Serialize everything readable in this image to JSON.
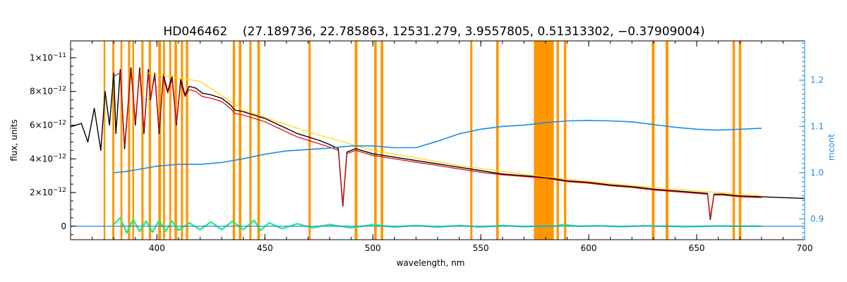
{
  "chart_data": {
    "type": "line",
    "title": "HD046462    (27.189736, 22.785863, 12531.279, 3.9557805, 0.51313302, −0.37909004)",
    "xlabel": "wavelength, nm",
    "ylabel": "flux, units",
    "y2label": "mcont",
    "xlim": [
      360,
      700
    ],
    "ylim": [
      -8e-13,
      1.1e-11
    ],
    "y2lim": [
      0.855,
      1.285
    ],
    "x_ticks": [
      400,
      450,
      500,
      550,
      600,
      650,
      700
    ],
    "y_ticks": [
      {
        "value": 0,
        "label": "0",
        "base": "",
        "exp": ""
      },
      {
        "value": 2e-12,
        "label": "",
        "base": "2×10",
        "exp": "−12"
      },
      {
        "value": 4e-12,
        "label": "",
        "base": "4×10",
        "exp": "−12"
      },
      {
        "value": 6e-12,
        "label": "",
        "base": "6×10",
        "exp": "−12"
      },
      {
        "value": 8e-12,
        "label": "",
        "base": "8×10",
        "exp": "−12"
      },
      {
        "value": 1e-11,
        "label": "",
        "base": "1×10",
        "exp": "−11"
      }
    ],
    "y2_ticks": [
      {
        "value": 0.9,
        "label": "0.9"
      },
      {
        "value": 1.0,
        "label": "1.0"
      },
      {
        "value": 1.1,
        "label": "1.1"
      },
      {
        "value": 1.2,
        "label": "1.2"
      }
    ],
    "masked_regions": [
      [
        375.3,
        376.1
      ],
      [
        379.3,
        380.3
      ],
      [
        383.1,
        384.0
      ],
      [
        386.6,
        387.6
      ],
      [
        388.6,
        389.4
      ],
      [
        392.8,
        393.8
      ],
      [
        396.2,
        397.3
      ],
      [
        400.6,
        401.9
      ],
      [
        402.8,
        403.7
      ],
      [
        405.7,
        406.6
      ],
      [
        408.1,
        409.3
      ],
      [
        411.1,
        412.1
      ],
      [
        413.4,
        414.5
      ],
      [
        435.1,
        436.2
      ],
      [
        437.9,
        439.1
      ],
      [
        442.8,
        443.8
      ],
      [
        446.5,
        447.7
      ],
      [
        470.2,
        471.2
      ],
      [
        491.6,
        492.9
      ],
      [
        500.6,
        501.8
      ],
      [
        503.6,
        504.8
      ],
      [
        545.1,
        546.1
      ],
      [
        557.1,
        558.3
      ],
      [
        574.6,
        583.8
      ],
      [
        585.1,
        586.2
      ],
      [
        588.5,
        589.6
      ],
      [
        629.2,
        630.5
      ],
      [
        635.6,
        636.9
      ],
      [
        666.6,
        667.7
      ],
      [
        669.5,
        670.7
      ]
    ],
    "series": [
      {
        "key": "observed",
        "color": "#000000",
        "axis": "left",
        "x": [
          360,
          365,
          368,
          371,
          374,
          376,
          378,
          380,
          381,
          383,
          385,
          388,
          390,
          392,
          394,
          396,
          397,
          399,
          401,
          403,
          405,
          407,
          409,
          411,
          413,
          415,
          418,
          421,
          425,
          430,
          434,
          436,
          440,
          445,
          450,
          455,
          460,
          465,
          470,
          475,
          480,
          484,
          486.1,
          488,
          492,
          500,
          510,
          520,
          530,
          540,
          550,
          560,
          570,
          580,
          590,
          600,
          610,
          620,
          630,
          640,
          650,
          655,
          656.3,
          658,
          662,
          670,
          680,
          690,
          700
        ],
        "y": [
          5.9e-12,
          6.1e-12,
          5e-12,
          7e-12,
          4.5e-12,
          8e-12,
          6e-12,
          9.1e-12,
          5.5e-12,
          9.3e-12,
          4.6e-12,
          9.4e-12,
          6e-12,
          9.4e-12,
          5.5e-12,
          9.3e-12,
          7.5e-12,
          9.1e-12,
          5.5e-12,
          9e-12,
          8e-12,
          8.9e-12,
          6e-12,
          8.7e-12,
          7.8e-12,
          8.3e-12,
          8.2e-12,
          7.9e-12,
          7.8e-12,
          7.6e-12,
          7.2e-12,
          6.9e-12,
          6.8e-12,
          6.6e-12,
          6.4e-12,
          6.1e-12,
          5.8e-12,
          5.5e-12,
          5.3e-12,
          5.1e-12,
          4.85e-12,
          4.6e-12,
          1.2e-12,
          4.4e-12,
          4.6e-12,
          4.3e-12,
          4.1e-12,
          3.9e-12,
          3.7e-12,
          3.5e-12,
          3.3e-12,
          3.1e-12,
          3e-12,
          2.9e-12,
          2.7e-12,
          2.6e-12,
          2.45e-12,
          2.35e-12,
          2.2e-12,
          2.1e-12,
          2e-12,
          1.95e-12,
          4e-13,
          1.9e-12,
          1.9e-12,
          1.8e-12,
          1.75e-12,
          1.7e-12,
          1.65e-12
        ]
      },
      {
        "key": "model",
        "color": "#e00000",
        "axis": "left",
        "x": [
          380,
          383,
          385,
          388,
          390,
          392,
          394,
          396,
          397,
          399,
          401,
          403,
          405,
          407,
          409,
          411,
          413,
          415,
          418,
          421,
          425,
          430,
          434,
          436,
          440,
          445,
          450,
          455,
          460,
          465,
          470,
          475,
          480,
          484,
          486.1,
          488,
          492,
          500,
          510,
          520,
          530,
          540,
          550,
          560,
          570,
          580,
          590,
          600,
          610,
          620,
          630,
          640,
          650,
          655,
          656.3,
          658,
          662,
          670,
          680
        ],
        "y": [
          8.9e-12,
          9.1e-12,
          4.8e-12,
          9.2e-12,
          6.2e-12,
          9.2e-12,
          5.7e-12,
          9.1e-12,
          7.6e-12,
          8.9e-12,
          5.7e-12,
          8.8e-12,
          7.9e-12,
          8.7e-12,
          6.1e-12,
          8.5e-12,
          7.7e-12,
          8.1e-12,
          8e-12,
          7.7e-12,
          7.6e-12,
          7.4e-12,
          7e-12,
          6.7e-12,
          6.6e-12,
          6.4e-12,
          6.2e-12,
          5.9e-12,
          5.6e-12,
          5.3e-12,
          5.1e-12,
          4.9e-12,
          4.7e-12,
          4.5e-12,
          1.3e-12,
          4.3e-12,
          4.5e-12,
          4.2e-12,
          4e-12,
          3.8e-12,
          3.6e-12,
          3.4e-12,
          3.2e-12,
          3.05e-12,
          2.95e-12,
          2.85e-12,
          2.65e-12,
          2.55e-12,
          2.4e-12,
          2.3e-12,
          2.15e-12,
          2.05e-12,
          1.95e-12,
          1.9e-12,
          5e-13,
          1.85e-12,
          1.85e-12,
          1.75e-12,
          1.7e-12
        ]
      },
      {
        "key": "continuum_model",
        "color": "#ffd800",
        "axis": "left",
        "x": [
          395,
          420,
          440,
          470,
          500,
          540,
          575,
          590,
          620,
          660,
          680
        ],
        "y": [
          9.1e-12,
          8.6e-12,
          6.9e-12,
          5.6e-12,
          4.5e-12,
          3.6e-12,
          3e-12,
          2.8e-12,
          2.4e-12,
          2e-12,
          1.8e-12
        ]
      },
      {
        "key": "residuals",
        "color": "#22ee77",
        "axis": "left",
        "x": [
          380,
          383,
          386,
          389,
          392,
          395,
          398,
          401,
          404,
          407,
          410,
          415,
          420,
          425,
          430,
          435,
          440,
          445,
          448,
          452,
          458,
          465,
          472,
          480,
          490,
          500,
          510,
          520,
          530,
          540,
          550,
          560,
          570,
          575,
          584,
          588,
          595,
          605,
          615,
          625,
          635,
          645,
          655,
          660,
          670,
          680
        ],
        "y": [
          1e-13,
          5e-13,
          -4e-13,
          4e-13,
          -3e-13,
          3e-13,
          -3.5e-13,
          3.5e-13,
          -3e-13,
          3e-13,
          -2.5e-13,
          2e-13,
          -2e-13,
          2.5e-13,
          -2e-13,
          3e-13,
          -2e-13,
          3.5e-13,
          -2.5e-13,
          2e-13,
          -1.5e-13,
          1.5e-13,
          -1e-13,
          1e-13,
          -1e-13,
          1e-13,
          -5e-14,
          5e-14,
          -5e-14,
          5e-14,
          -5e-14,
          5e-14,
          -3e-14,
          0.0,
          0.0,
          1e-13,
          0.0,
          3e-14,
          -3e-14,
          3e-14,
          0.0,
          -3e-14,
          0.0,
          2e-14,
          0.0,
          0.0
        ]
      },
      {
        "key": "zero_level",
        "color": "#1f8be0",
        "axis": "left",
        "x": [
          360,
          700
        ],
        "y": [
          0.0,
          0.0
        ]
      },
      {
        "key": "mcont",
        "color": "#1f8be0",
        "axis": "right",
        "x": [
          380,
          385,
          390,
          400,
          410,
          420,
          430,
          440,
          450,
          460,
          470,
          480,
          490,
          500,
          510,
          520,
          530,
          540,
          550,
          560,
          570,
          580,
          590,
          600,
          610,
          620,
          630,
          640,
          650,
          660,
          670,
          680
        ],
        "y": [
          1.0,
          1.002,
          1.006,
          1.014,
          1.018,
          1.018,
          1.022,
          1.03,
          1.04,
          1.047,
          1.05,
          1.053,
          1.058,
          1.058,
          1.054,
          1.054,
          1.068,
          1.084,
          1.094,
          1.1,
          1.103,
          1.108,
          1.112,
          1.113,
          1.112,
          1.11,
          1.104,
          1.098,
          1.094,
          1.092,
          1.094,
          1.096
        ]
      }
    ]
  }
}
